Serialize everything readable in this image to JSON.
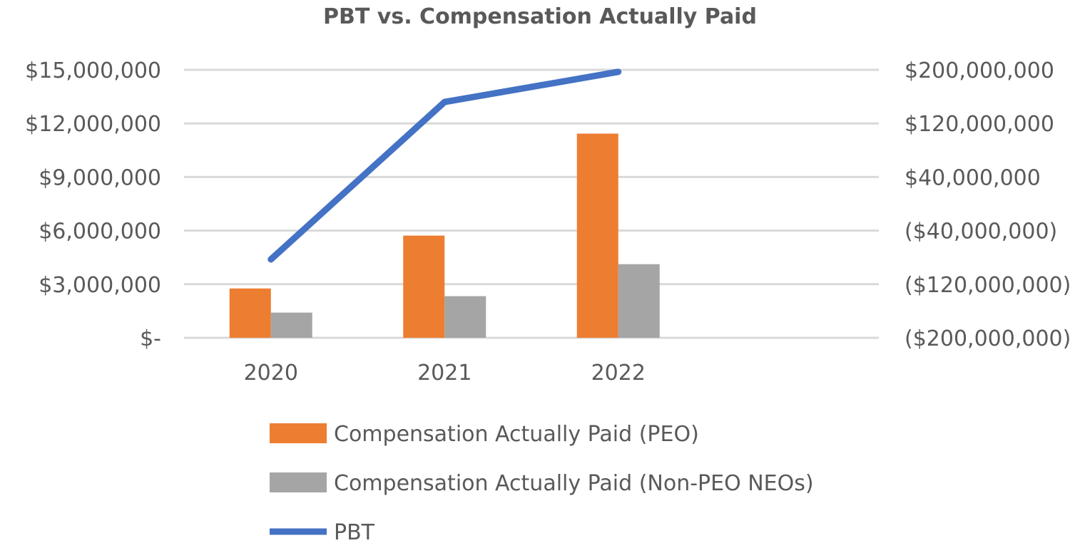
{
  "chart_data": {
    "type": "bar+line",
    "title": "PBT vs. Compensation Actually Paid",
    "categories": [
      "2020",
      "2021",
      "2022",
      ""
    ],
    "left_axis": {
      "ylim": [
        0,
        15000000
      ],
      "tick_labels": [
        "$-",
        "$3,000,000",
        "$6,000,000",
        "$9,000,000",
        "$12,000,000",
        "$15,000,000"
      ]
    },
    "right_axis": {
      "ylim": [
        -200000000,
        200000000
      ],
      "tick_labels": [
        "($200,000,000)",
        "($120,000,000)",
        "($40,000,000)",
        "$40,000,000",
        "$120,000,000",
        "$200,000,000"
      ]
    },
    "grid": true,
    "legend_position": "bottom",
    "series": [
      {
        "name": "Compensation Actually Paid (PEO)",
        "type": "bar",
        "axis": "left",
        "color": "#ED7D31",
        "values": [
          2760000,
          5720000,
          11430000,
          null
        ]
      },
      {
        "name": "Compensation Actually Paid (Non-PEO NEOs)",
        "type": "bar",
        "axis": "left",
        "color": "#A5A5A5",
        "values": [
          1410000,
          2330000,
          4120000,
          null
        ]
      },
      {
        "name": "PBT",
        "type": "line",
        "axis": "right",
        "color": "#4472C4",
        "values": [
          -83000000,
          152000000,
          197000000,
          null
        ]
      }
    ]
  }
}
